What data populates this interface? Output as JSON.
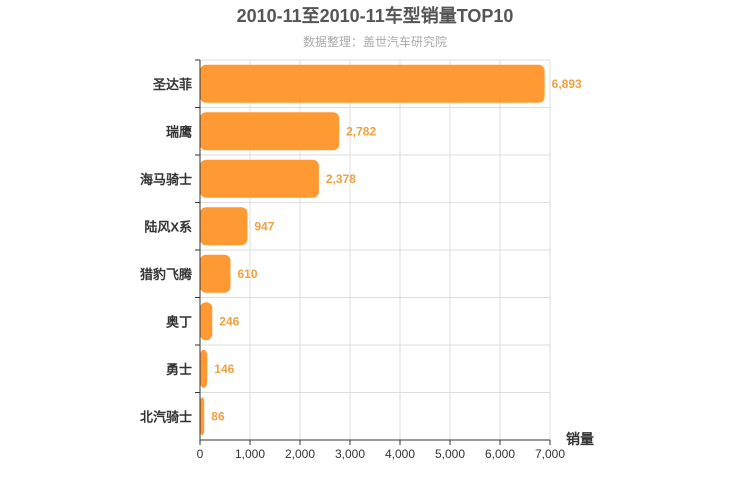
{
  "chart_data": {
    "type": "bar",
    "orientation": "horizontal",
    "title": "2010-11至2010-11车型销量TOP10",
    "subtitle": "数据整理：盖世汽车研究院",
    "categories": [
      "圣达菲",
      "瑞鹰",
      "海马骑士",
      "陆风X系",
      "猎豹飞腾",
      "奥丁",
      "勇士",
      "北汽骑士"
    ],
    "values": [
      6893,
      2782,
      2378,
      947,
      610,
      246,
      146,
      86
    ],
    "value_labels": [
      "6,893",
      "2,782",
      "2,378",
      "947",
      "610",
      "246",
      "146",
      "86"
    ],
    "xlabel": "销量",
    "ylabel": "",
    "xlim": [
      0,
      7000
    ],
    "xticks": [
      0,
      1000,
      2000,
      3000,
      4000,
      5000,
      6000,
      7000
    ],
    "xtick_labels": [
      "0",
      "1,000",
      "2,000",
      "3,000",
      "4,000",
      "5,000",
      "6,000",
      "7,000"
    ],
    "grid": true,
    "bar_color": "#ff9933",
    "label_color": "#f0a040"
  }
}
